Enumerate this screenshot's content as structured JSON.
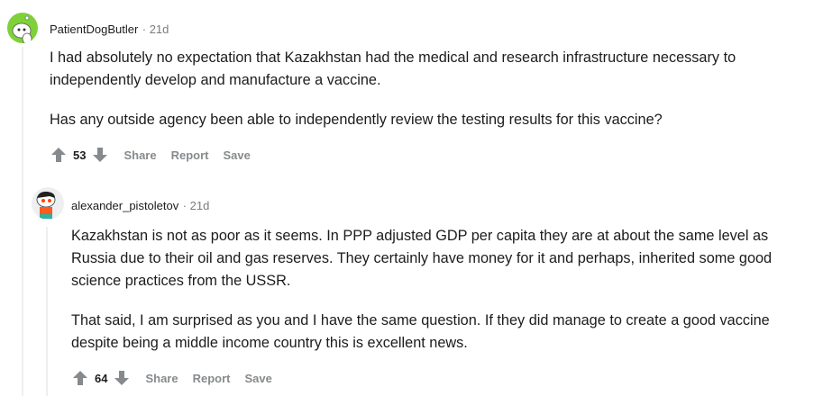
{
  "comments": [
    {
      "username": "PatientDogButler",
      "age": "21d",
      "paragraphs": [
        "I had absolutely no expectation that Kazakhstan had the medical and research infrastructure necessary to independently develop and manufacture a vaccine.",
        "Has any outside agency been able to independently review the testing results for this vaccine?"
      ],
      "score": "53",
      "actions": [
        "Share",
        "Report",
        "Save"
      ]
    },
    {
      "username": "alexander_pistoletov",
      "age": "21d",
      "paragraphs": [
        "Kazakhstan is not as poor as it seems. In PPP adjusted GDP per capita they are at about the same level as Russia due to their oil and gas reserves. They certainly have money for it and perhaps, inherited some good science practices from the USSR.",
        "That said, I am surprised as you and I have the same question. If they did manage to create a good vaccine despite being a middle income country this is excellent news."
      ],
      "score": "64",
      "actions": [
        "Share",
        "Report",
        "Save"
      ]
    }
  ],
  "colors": {
    "avatar1_bg": "#7fd13a",
    "avatar2_bg": "#edeff1",
    "accent_orange": "#ff4500",
    "muted": "#878a8c",
    "thread_line": "#edeff1"
  }
}
